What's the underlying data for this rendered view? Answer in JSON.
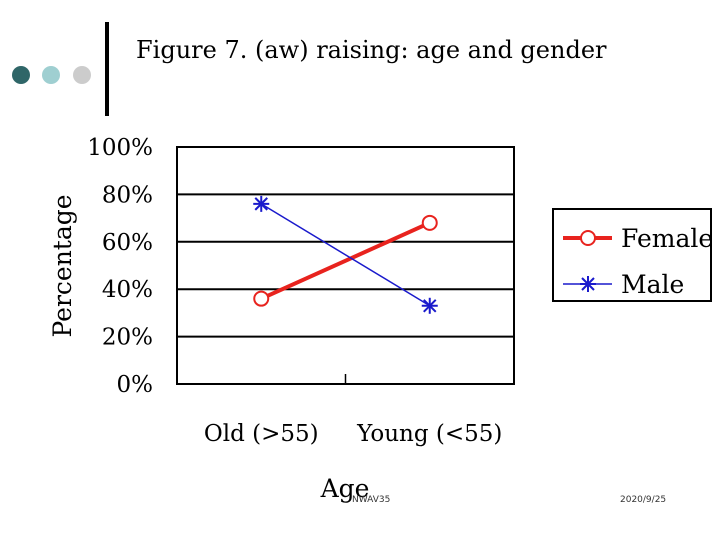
{
  "slide": {
    "title": "Figure 7. (aw) raising: age and gender",
    "footer_left": "NWAV35",
    "footer_right": "2020/9/25",
    "decor_dots": [
      "#2f6668",
      "#9fcfd1",
      "#cccccc"
    ]
  },
  "chart_data": {
    "type": "line",
    "title": "",
    "xlabel": "Age",
    "ylabel": "Percentage",
    "categories": [
      "Old (>55)",
      "Young (<55)"
    ],
    "ylim": [
      0,
      100
    ],
    "yticks": [
      "0%",
      "20%",
      "40%",
      "60%",
      "80%",
      "100%"
    ],
    "grid": true,
    "legend_position": "right",
    "series": [
      {
        "name": "Female",
        "values": [
          36,
          68
        ],
        "color": "#e8231e",
        "marker": "circle"
      },
      {
        "name": "Male",
        "values": [
          76,
          33
        ],
        "color": "#1a1acc",
        "marker": "star"
      }
    ]
  }
}
